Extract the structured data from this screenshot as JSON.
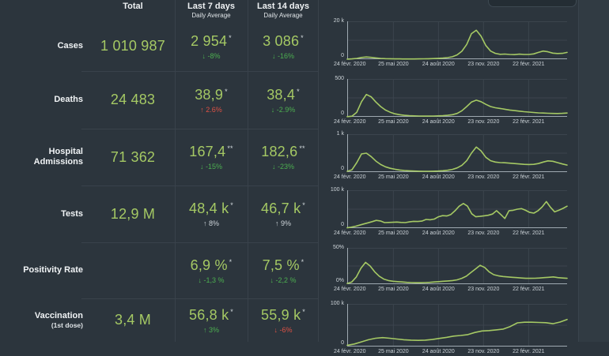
{
  "theme": {
    "background": "#2c353d",
    "accent_green": "#a5c964",
    "change_green": "#4caf50",
    "change_red": "#dd5144",
    "change_gray": "#ccd3d8",
    "grid_color": "#3b444d",
    "axis_color": "#9fa9b1",
    "divider_color": "#39424b",
    "text_color": "#e9edf0"
  },
  "header": {
    "col_total": "Total",
    "col_7d": "Last 7 days",
    "col_14d": "Last 14 days",
    "daily_average": "Daily Average"
  },
  "rows": [
    {
      "label": "Cases",
      "sublabel": "",
      "total": "1 010 987",
      "avg7": "2 954",
      "avg7_mark": "*",
      "avg7_change": "↓ -8%",
      "avg7_change_color": "#4caf50",
      "avg14": "3 086",
      "avg14_mark": "*",
      "avg14_change": "↓ -16%",
      "avg14_change_color": "#4caf50"
    },
    {
      "label": "Deaths",
      "sublabel": "",
      "total": "24 483",
      "avg7": "38,9",
      "avg7_mark": "*",
      "avg7_change": "↑ 2.6%",
      "avg7_change_color": "#dd5144",
      "avg14": "38,4",
      "avg14_mark": "*",
      "avg14_change": "↓ -2.9%",
      "avg14_change_color": "#4caf50"
    },
    {
      "label": "Hospital Admissions",
      "sublabel": "",
      "total": "71 362",
      "avg7": "167,4",
      "avg7_mark": "**",
      "avg7_change": "↓ -15%",
      "avg7_change_color": "#4caf50",
      "avg14": "182,6",
      "avg14_mark": "**",
      "avg14_change": "↓ -23%",
      "avg14_change_color": "#4caf50"
    },
    {
      "label": "Tests",
      "sublabel": "",
      "total": "12,9 M",
      "avg7": "48,4 k",
      "avg7_mark": "*",
      "avg7_change": "↑ 8%",
      "avg7_change_color": "#ccd3d8",
      "avg14": "46,7 k",
      "avg14_mark": "*",
      "avg14_change": "↑ 9%",
      "avg14_change_color": "#ccd3d8"
    },
    {
      "label": "Positivity Rate",
      "sublabel": "",
      "total": "",
      "avg7": "6,9 %",
      "avg7_mark": "*",
      "avg7_change": "↓ -1,3 %",
      "avg7_change_color": "#4caf50",
      "avg14": "7,5 %",
      "avg14_mark": "*",
      "avg14_change": "↓ -2,2 %",
      "avg14_change_color": "#4caf50"
    },
    {
      "label": "Vaccination",
      "sublabel": "(1st dose)",
      "total": "3,4 M",
      "avg7": "56,8 k",
      "avg7_mark": "*",
      "avg7_change": "↑ 3%",
      "avg7_change_color": "#4caf50",
      "avg14": "55,9 k",
      "avg14_mark": "*",
      "avg14_change": "↓ -6%",
      "avg14_change_color": "#dd5144"
    }
  ],
  "chart_data": [
    {
      "type": "line",
      "title": "Cases daily",
      "ylim": [
        0,
        20000
      ],
      "ymax_label": "20 k",
      "ymin_label": "0",
      "x_ticks": [
        "24 févr. 2020",
        "25 mai 2020",
        "24 août 2020",
        "23 nov. 2020",
        "22 févr. 2021"
      ],
      "values": [
        60,
        150,
        400,
        900,
        1150,
        950,
        650,
        420,
        300,
        230,
        180,
        150,
        130,
        120,
        130,
        160,
        210,
        270,
        340,
        450,
        600,
        850,
        1300,
        2300,
        4200,
        7800,
        13500,
        15300,
        12200,
        7200,
        4300,
        3100,
        2600,
        2700,
        2500,
        2400,
        2650,
        2500,
        2500,
        2800,
        3600,
        4300,
        3900,
        3200,
        3000,
        3100,
        3600
      ]
    },
    {
      "type": "line",
      "title": "Deaths daily",
      "ylim": [
        0,
        500
      ],
      "ymax_label": "500",
      "ymin_label": "0",
      "x_ticks": [
        "24 févr. 2020",
        "25 mai 2020",
        "24 août 2020",
        "23 nov. 2020",
        "22 févr. 2021"
      ],
      "values": [
        2,
        8,
        60,
        200,
        295,
        265,
        195,
        135,
        90,
        60,
        40,
        28,
        20,
        15,
        12,
        10,
        9,
        9,
        10,
        12,
        15,
        20,
        28,
        45,
        80,
        135,
        195,
        220,
        200,
        165,
        135,
        120,
        110,
        100,
        90,
        82,
        75,
        68,
        62,
        57,
        52,
        50,
        47,
        45,
        44,
        46,
        50
      ]
    },
    {
      "type": "line",
      "title": "Hospital admissions daily",
      "ylim": [
        0,
        1000
      ],
      "ymax_label": "1 k",
      "ymin_label": "0",
      "x_ticks": [
        "24 févr. 2020",
        "25 mai 2020",
        "24 août 2020",
        "23 nov. 2020",
        "22 févr. 2021"
      ],
      "values": [
        20,
        60,
        250,
        480,
        500,
        410,
        290,
        200,
        140,
        100,
        75,
        55,
        42,
        33,
        27,
        23,
        20,
        20,
        23,
        28,
        35,
        48,
        70,
        110,
        180,
        300,
        500,
        660,
        560,
        390,
        300,
        265,
        250,
        245,
        235,
        225,
        215,
        205,
        200,
        205,
        225,
        265,
        295,
        285,
        250,
        215,
        185
      ]
    },
    {
      "type": "line",
      "title": "Tests daily",
      "ylim": [
        0,
        100000
      ],
      "ymax_label": "100 k",
      "ymin_label": "0",
      "x_ticks": [
        "24 févr. 2020",
        "25 mai 2020",
        "24 août 2020",
        "23 nov. 2020",
        "22 févr. 2021"
      ],
      "values": [
        800,
        2500,
        5000,
        8000,
        11000,
        14000,
        17000,
        20500,
        19000,
        14500,
        15000,
        15500,
        16000,
        15000,
        14500,
        16500,
        18000,
        17500,
        18500,
        23000,
        22000,
        24000,
        30000,
        33000,
        32000,
        36000,
        46000,
        58000,
        65000,
        58000,
        38000,
        30000,
        31000,
        32500,
        34000,
        37000,
        46000,
        36000,
        25500,
        46000,
        47000,
        50000,
        51500,
        47000,
        41500,
        39500,
        46000,
        56000,
        70000,
        55000,
        43000,
        47000,
        52000,
        58000
      ]
    },
    {
      "type": "line",
      "title": "Positivity rate daily",
      "ylim": [
        0,
        50
      ],
      "ymax_label": "50%",
      "ymin_label": "0%",
      "x_ticks": [
        "24 févr. 2020",
        "25 mai 2020",
        "24 août 2020",
        "23 nov. 2020",
        "22 févr. 2021"
      ],
      "values": [
        1,
        3,
        10,
        22,
        30,
        25,
        17,
        11,
        7,
        5,
        4,
        3.5,
        3,
        2.5,
        2.2,
        2,
        2,
        2.2,
        2.5,
        3,
        3.5,
        4,
        4.5,
        5,
        6,
        8,
        11,
        16,
        21,
        26,
        23,
        17,
        13,
        11.5,
        10.5,
        10,
        9.5,
        9,
        8.5,
        8,
        8,
        8.2,
        8.5,
        9,
        9.5,
        10,
        9,
        8.5,
        8
      ]
    },
    {
      "type": "line",
      "title": "Vaccination 1st dose daily",
      "ylim": [
        0,
        100000
      ],
      "ymax_label": "100 k",
      "ymin_label": "0",
      "x_ticks": [
        "24 févr. 2020",
        "25 mai 2020",
        "24 août 2020",
        "23 nov. 2020",
        "22 févr. 2021"
      ],
      "values": [
        3000,
        6000,
        11000,
        16000,
        19500,
        21000,
        19500,
        17500,
        16000,
        15000,
        14500,
        15000,
        16500,
        19000,
        21500,
        24500,
        26000,
        28000,
        33000,
        36500,
        37500,
        39000,
        41000,
        47000,
        55500,
        57000,
        57000,
        56500,
        56000,
        53500,
        57500,
        63500
      ]
    }
  ]
}
